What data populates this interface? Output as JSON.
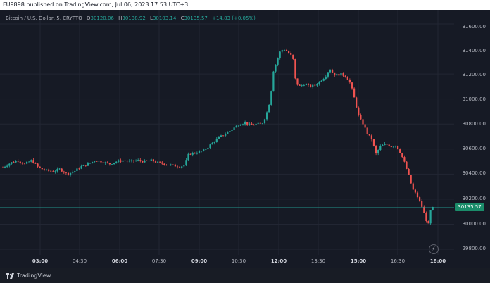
{
  "header": {
    "published_text": "FU9898 published on TradingView.com,  Jul 06, 2023 17:53 UTC+3"
  },
  "legend": {
    "symbol": "Bitcoin / U.S. Dollar, 5, CRYPTO",
    "open_label": "O",
    "open": "30120.06",
    "high_label": "H",
    "high": "30138.92",
    "low_label": "L",
    "low": "30103.14",
    "close_label": "C",
    "close": "30135.57",
    "change": "+14.83 (+0.05%)"
  },
  "y_axis": {
    "labels": [
      "31600.00",
      "31400.00",
      "31200.00",
      "31000.00",
      "30800.00",
      "30600.00",
      "30400.00",
      "30200.00",
      "30000.00",
      "29800.00"
    ]
  },
  "current_price": "30135.57",
  "x_axis": {
    "labels": [
      "03:00",
      "04:30",
      "06:00",
      "07:30",
      "09:00",
      "10:30",
      "12:00",
      "13:30",
      "15:00",
      "16:30",
      "18:00"
    ]
  },
  "footer": {
    "brand": "TradingView"
  },
  "colors": {
    "up": "#26a69a",
    "down": "#ef5350",
    "background": "#161a25",
    "price_line": "#26a69a"
  },
  "chart_data": {
    "type": "candlestick",
    "interval": "5",
    "ylim": [
      29750,
      31700
    ],
    "anchor_price_series": [
      [
        0,
        30440
      ],
      [
        6,
        30460
      ],
      [
        15,
        30490
      ],
      [
        25,
        30510
      ],
      [
        35,
        30480
      ],
      [
        45,
        30510
      ],
      [
        55,
        30450
      ],
      [
        65,
        30430
      ],
      [
        75,
        30420
      ],
      [
        85,
        30440
      ],
      [
        95,
        30400
      ],
      [
        105,
        30420
      ],
      [
        115,
        30460
      ],
      [
        125,
        30480
      ],
      [
        135,
        30510
      ],
      [
        145,
        30500
      ],
      [
        155,
        30480
      ],
      [
        165,
        30500
      ],
      [
        175,
        30510
      ],
      [
        185,
        30500
      ],
      [
        195,
        30510
      ],
      [
        205,
        30500
      ],
      [
        215,
        30510
      ],
      [
        225,
        30490
      ],
      [
        235,
        30480
      ],
      [
        245,
        30470
      ],
      [
        255,
        30460
      ],
      [
        262,
        30470
      ],
      [
        268,
        30560
      ],
      [
        278,
        30570
      ],
      [
        290,
        30590
      ],
      [
        300,
        30640
      ],
      [
        310,
        30690
      ],
      [
        320,
        30720
      ],
      [
        330,
        30760
      ],
      [
        340,
        30800
      ],
      [
        348,
        30810
      ],
      [
        356,
        30790
      ],
      [
        364,
        30800
      ],
      [
        372,
        30800
      ],
      [
        378,
        30870
      ],
      [
        384,
        31000
      ],
      [
        388,
        31220
      ],
      [
        393,
        31300
      ],
      [
        398,
        31380
      ],
      [
        403,
        31400
      ],
      [
        410,
        31370
      ],
      [
        416,
        31330
      ],
      [
        420,
        31130
      ],
      [
        426,
        31100
      ],
      [
        432,
        31120
      ],
      [
        440,
        31100
      ],
      [
        448,
        31110
      ],
      [
        456,
        31150
      ],
      [
        462,
        31180
      ],
      [
        468,
        31240
      ],
      [
        476,
        31190
      ],
      [
        484,
        31200
      ],
      [
        492,
        31180
      ],
      [
        498,
        31120
      ],
      [
        504,
        30990
      ],
      [
        510,
        30850
      ],
      [
        516,
        30800
      ],
      [
        522,
        30720
      ],
      [
        528,
        30680
      ],
      [
        534,
        30560
      ],
      [
        540,
        30620
      ],
      [
        548,
        30640
      ],
      [
        556,
        30620
      ],
      [
        562,
        30630
      ],
      [
        568,
        30580
      ],
      [
        574,
        30500
      ],
      [
        580,
        30400
      ],
      [
        586,
        30280
      ],
      [
        592,
        30230
      ],
      [
        598,
        30160
      ],
      [
        604,
        30060
      ],
      [
        608,
        29980
      ],
      [
        612,
        30120
      ],
      [
        616,
        30135
      ]
    ],
    "last_close": 30135.57
  }
}
